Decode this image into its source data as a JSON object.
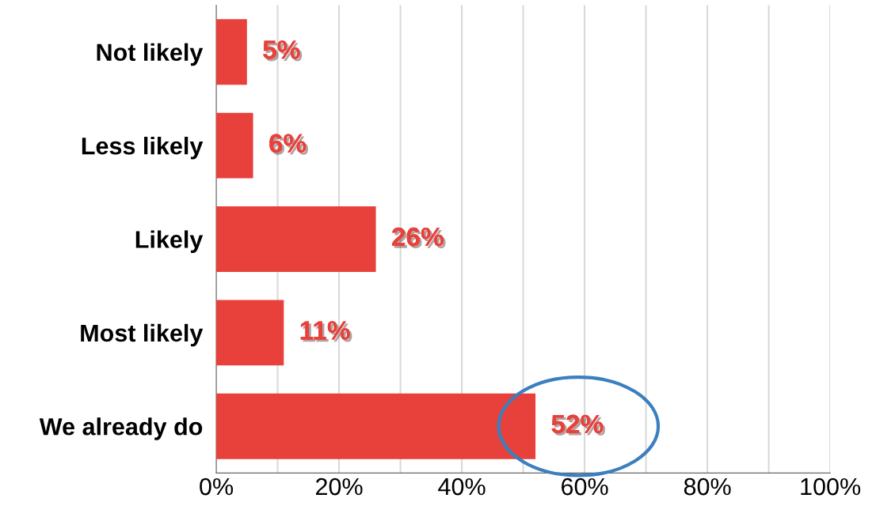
{
  "chart_data": {
    "type": "bar",
    "orientation": "horizontal",
    "categories": [
      "Not likely",
      "Less likely",
      "Likely",
      "Most likely",
      "We already do"
    ],
    "values": [
      5,
      6,
      26,
      11,
      52
    ],
    "value_labels": [
      "5%",
      "6%",
      "26%",
      "11%",
      "52%"
    ],
    "color": "#e8403a",
    "xlim": [
      0,
      100
    ],
    "xticks": [
      {
        "value": 0,
        "label": "0%"
      },
      {
        "value": 10,
        "label": null
      },
      {
        "value": 20,
        "label": "20%"
      },
      {
        "value": 30,
        "label": null
      },
      {
        "value": 40,
        "label": "40%"
      },
      {
        "value": 50,
        "label": null
      },
      {
        "value": 60,
        "label": "60%"
      },
      {
        "value": 70,
        "label": null
      },
      {
        "value": 80,
        "label": "80%"
      },
      {
        "value": 90,
        "label": null
      },
      {
        "value": 100,
        "label": "100%"
      }
    ],
    "grid": "x",
    "legend": false
  }
}
